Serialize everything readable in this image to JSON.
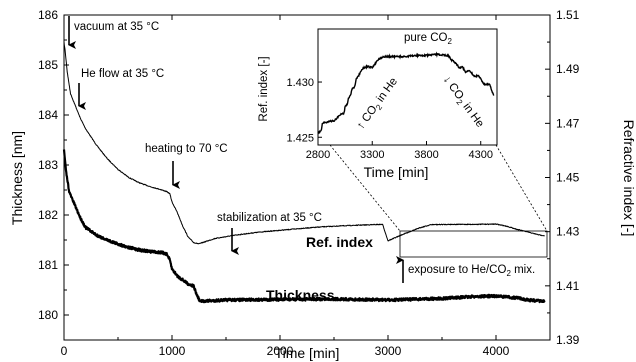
{
  "chart_data": {
    "type": "line",
    "xlabel": "Time [min]",
    "ylabel_left": "Thickness [nm]",
    "ylabel_right": "Refractive index [-]",
    "xlim": [
      0,
      4500
    ],
    "ylim_left": [
      179.5,
      186
    ],
    "ylim_right": [
      1.39,
      1.51
    ],
    "x_ticks": [
      0,
      1000,
      2000,
      3000,
      4000
    ],
    "y_ticks_left": [
      180,
      181,
      182,
      183,
      184,
      185,
      186
    ],
    "y_ticks_right": [
      "1.39",
      "1.41",
      "1.43",
      "1.45",
      "1.47",
      "1.49",
      "1.51"
    ],
    "grid": false,
    "series": [
      {
        "name": "Ref. index",
        "axis": "right",
        "x": [
          0,
          10,
          30,
          60,
          100,
          150,
          200,
          300,
          400,
          500,
          600,
          700,
          800,
          900,
          950,
          980,
          1000,
          1050,
          1100,
          1150,
          1200,
          1250,
          1300,
          1400,
          1600,
          1800,
          2000,
          2200,
          2400,
          2600,
          2800,
          2950,
          3000,
          3050,
          3150,
          3300,
          3400,
          3600,
          3800,
          4000,
          4100,
          4200,
          4300,
          4400,
          4450
        ],
        "y": [
          1.5,
          1.497,
          1.489,
          1.481,
          1.477,
          1.472,
          1.468,
          1.462,
          1.457,
          1.453,
          1.45,
          1.448,
          1.4466,
          1.4455,
          1.4448,
          1.444,
          1.441,
          1.437,
          1.432,
          1.428,
          1.426,
          1.4255,
          1.4262,
          1.4275,
          1.4288,
          1.4298,
          1.4305,
          1.4312,
          1.4318,
          1.4322,
          1.4325,
          1.4327,
          1.4266,
          1.4275,
          1.4292,
          1.4315,
          1.4326,
          1.4327,
          1.4327,
          1.4328,
          1.432,
          1.4308,
          1.4298,
          1.4288,
          1.4285
        ]
      },
      {
        "name": "Thickness",
        "axis": "left",
        "x": [
          0,
          20,
          50,
          100,
          150,
          200,
          300,
          400,
          500,
          600,
          700,
          800,
          900,
          950,
          980,
          1000,
          1050,
          1100,
          1150,
          1200,
          1230,
          1260,
          1300,
          1500,
          2000,
          2500,
          3000,
          3500,
          3800,
          4000,
          4200,
          4300,
          4450
        ],
        "y": [
          183.3,
          182.85,
          182.45,
          182.2,
          181.95,
          181.75,
          181.6,
          181.5,
          181.42,
          181.35,
          181.3,
          181.27,
          181.25,
          181.22,
          181.1,
          180.92,
          180.78,
          180.7,
          180.62,
          180.58,
          180.4,
          180.27,
          180.28,
          180.3,
          180.31,
          180.32,
          180.3,
          180.33,
          180.37,
          180.38,
          180.34,
          180.3,
          180.27
        ]
      }
    ],
    "series_labels": {
      "ref_index": "Ref. index",
      "thickness": "Thickness"
    },
    "annotations": {
      "vacuum": "vacuum at 35 °C",
      "he_flow": "He flow at 35 °C",
      "heating": "heating to 70 °C",
      "stabilization": "stabilization at 35 °C",
      "exposure_pre": "exposure to He/CO",
      "exposure_sub": "2",
      "exposure_post": " mix."
    },
    "inset": {
      "type": "line",
      "xlabel": "Time [min]",
      "ylabel": "Ref. index [-]",
      "xlim": [
        2800,
        4450
      ],
      "ylim": [
        1.4243,
        1.4348
      ],
      "x_ticks": [
        2800,
        3300,
        3800,
        4300
      ],
      "y_ticks": [
        "1.425",
        "1.430"
      ],
      "annotations": {
        "pure_pre": "pure CO",
        "pure_sub": "2",
        "co2_in_he_1_pre": "↑ CO",
        "co2_in_he_1_sub": "2",
        "co2_in_he_1_post": " in He",
        "co2_in_he_2_pre": "↓ CO",
        "co2_in_he_2_sub": "2",
        "co2_in_he_2_post": " in He"
      },
      "series": [
        {
          "x": [
            2800,
            2830,
            2840,
            2900,
            2950,
            2970,
            3000,
            3040,
            3050,
            3070,
            3080,
            3100,
            3110,
            3140,
            3150,
            3170,
            3200,
            3220,
            3260,
            3300,
            3350,
            3380,
            3420,
            3500,
            3600,
            3700,
            3800,
            3900,
            4000,
            4030,
            4050,
            4080,
            4100,
            4130,
            4160,
            4200,
            4240,
            4280,
            4330,
            4380,
            4420
          ],
          "y": [
            1.4254,
            1.4256,
            1.4263,
            1.4264,
            1.4265,
            1.4267,
            1.427,
            1.4272,
            1.4278,
            1.428,
            1.4285,
            1.4288,
            1.4293,
            1.4296,
            1.4302,
            1.4305,
            1.431,
            1.4313,
            1.4314,
            1.4313,
            1.432,
            1.4322,
            1.4323,
            1.4323,
            1.4323,
            1.4324,
            1.4324,
            1.4325,
            1.4324,
            1.432,
            1.4319,
            1.4316,
            1.4313,
            1.4314,
            1.4309,
            1.431,
            1.4305,
            1.4306,
            1.4298,
            1.4298,
            1.4288
          ]
        }
      ]
    }
  }
}
